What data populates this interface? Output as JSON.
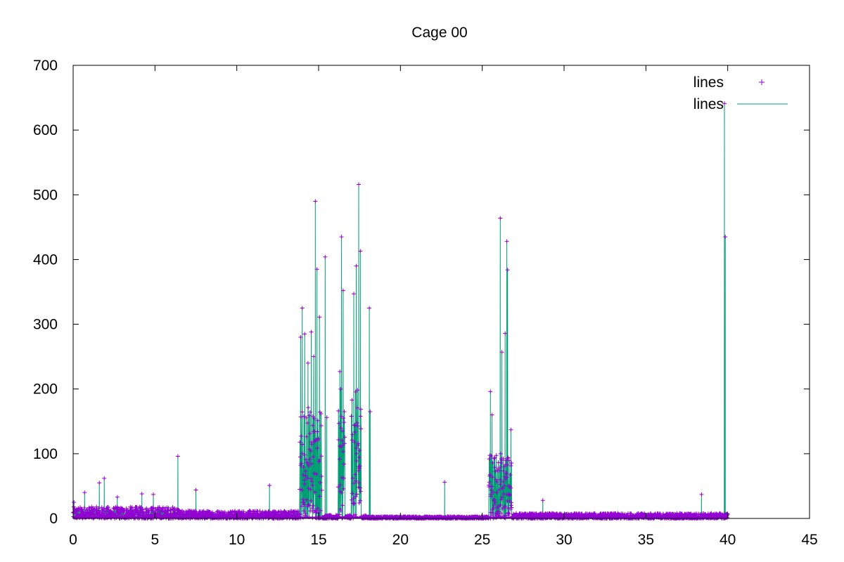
{
  "chart_data": {
    "type": "line",
    "title": "Cage 00",
    "xlabel": "",
    "ylabel": "",
    "xlim": [
      0,
      45
    ],
    "ylim": [
      0,
      700
    ],
    "x_ticks": [
      "0",
      "5",
      "10",
      "15",
      "20",
      "25",
      "30",
      "35",
      "40",
      "45"
    ],
    "y_ticks": [
      "0",
      "100",
      "200",
      "300",
      "400",
      "500",
      "600",
      "700"
    ],
    "grid": false,
    "legend_position": "top-right",
    "colors": {
      "points": "#9400d3",
      "lines": "#009e73"
    },
    "series": [
      {
        "name": "lines",
        "style": "points",
        "color": "#9400d3",
        "peaks": [
          [
            0.05,
            25
          ],
          [
            0.7,
            40
          ],
          [
            1.6,
            55
          ],
          [
            1.9,
            62
          ],
          [
            2.7,
            33
          ],
          [
            4.2,
            38
          ],
          [
            4.9,
            37
          ],
          [
            6.4,
            96
          ],
          [
            7.5,
            44
          ],
          [
            12.0,
            51
          ],
          [
            13.9,
            280
          ],
          [
            14.0,
            325
          ],
          [
            14.15,
            285
          ],
          [
            14.35,
            240
          ],
          [
            14.55,
            288
          ],
          [
            14.7,
            250
          ],
          [
            14.8,
            490
          ],
          [
            14.9,
            385
          ],
          [
            15.05,
            311
          ],
          [
            15.4,
            404
          ],
          [
            15.5,
            156
          ],
          [
            16.3,
            227
          ],
          [
            16.4,
            435
          ],
          [
            16.5,
            352
          ],
          [
            17.15,
            347
          ],
          [
            17.3,
            390
          ],
          [
            17.45,
            516
          ],
          [
            17.55,
            413
          ],
          [
            18.1,
            325
          ],
          [
            18.15,
            165
          ],
          [
            22.7,
            56
          ],
          [
            25.5,
            196
          ],
          [
            25.6,
            160
          ],
          [
            26.1,
            464
          ],
          [
            26.2,
            257
          ],
          [
            26.4,
            286
          ],
          [
            26.5,
            428
          ],
          [
            26.55,
            384
          ],
          [
            26.75,
            137
          ],
          [
            28.7,
            28
          ],
          [
            38.4,
            37
          ],
          [
            39.8,
            641
          ],
          [
            39.85,
            435
          ]
        ]
      },
      {
        "name": "lines",
        "style": "lines",
        "color": "#009e73",
        "peaks": [
          [
            0.05,
            25
          ],
          [
            0.7,
            40
          ],
          [
            1.6,
            55
          ],
          [
            1.9,
            62
          ],
          [
            2.7,
            33
          ],
          [
            4.2,
            38
          ],
          [
            4.9,
            37
          ],
          [
            6.4,
            96
          ],
          [
            7.5,
            44
          ],
          [
            12.0,
            51
          ],
          [
            13.9,
            280
          ],
          [
            14.0,
            325
          ],
          [
            14.15,
            285
          ],
          [
            14.35,
            240
          ],
          [
            14.55,
            288
          ],
          [
            14.7,
            250
          ],
          [
            14.8,
            490
          ],
          [
            14.9,
            385
          ],
          [
            15.05,
            311
          ],
          [
            15.4,
            404
          ],
          [
            15.5,
            156
          ],
          [
            16.3,
            227
          ],
          [
            16.4,
            435
          ],
          [
            16.5,
            352
          ],
          [
            17.15,
            347
          ],
          [
            17.3,
            390
          ],
          [
            17.45,
            516
          ],
          [
            17.55,
            413
          ],
          [
            18.1,
            325
          ],
          [
            18.15,
            165
          ],
          [
            22.7,
            56
          ],
          [
            25.5,
            196
          ],
          [
            25.6,
            160
          ],
          [
            26.1,
            464
          ],
          [
            26.2,
            257
          ],
          [
            26.4,
            286
          ],
          [
            26.5,
            428
          ],
          [
            26.55,
            384
          ],
          [
            26.75,
            137
          ],
          [
            28.7,
            28
          ],
          [
            38.4,
            37
          ],
          [
            39.8,
            641
          ],
          [
            39.85,
            435
          ]
        ],
        "dense_regions": [
          {
            "x": [
              0,
              6.5
            ],
            "typical_max": 18
          },
          {
            "x": [
              6.5,
              13.8
            ],
            "typical_max": 12
          },
          {
            "x": [
              13.8,
              15.2
            ],
            "typical_max": 180
          },
          {
            "x": [
              16.2,
              16.6
            ],
            "typical_max": 200
          },
          {
            "x": [
              17.0,
              17.6
            ],
            "typical_max": 200
          },
          {
            "x": [
              18.0,
              25.4
            ],
            "typical_max": 3
          },
          {
            "x": [
              25.4,
              26.8
            ],
            "typical_max": 100
          },
          {
            "x": [
              26.8,
              40.0
            ],
            "typical_max": 8
          }
        ]
      }
    ]
  }
}
